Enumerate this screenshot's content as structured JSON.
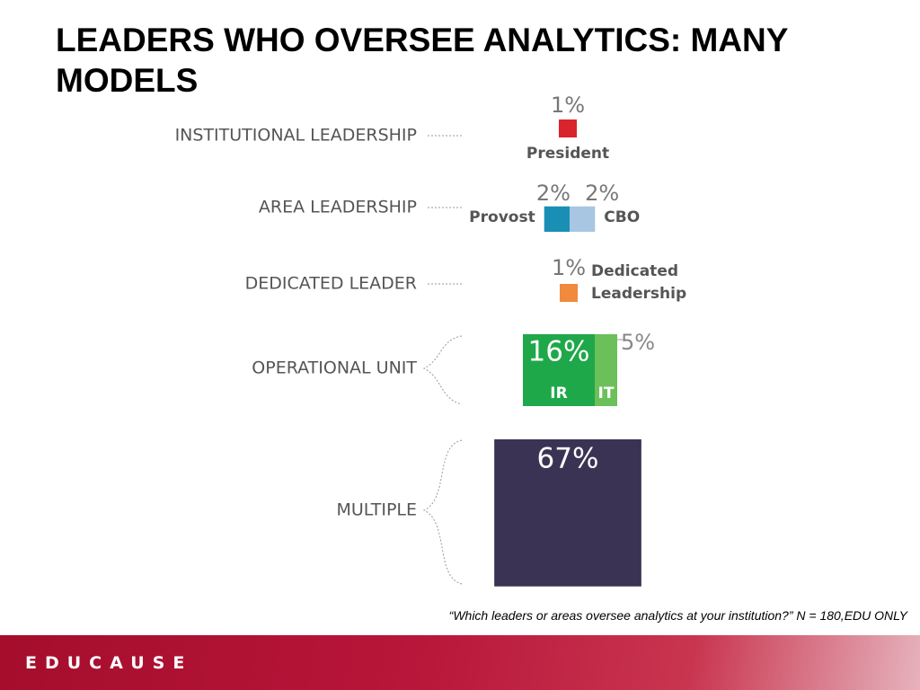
{
  "title": "LEADERS WHO OVERSEE ANALYTICS: MANY MODELS",
  "groups": [
    {
      "label": "INSTITUTIONAL LEADERSHIP",
      "items": [
        {
          "name": "President",
          "value": 1,
          "value_label": "1%",
          "color": "#d9232d"
        }
      ]
    },
    {
      "label": "AREA LEADERSHIP",
      "items": [
        {
          "name": "Provost",
          "value": 2,
          "value_label": "2%",
          "color": "#1a8fb5"
        },
        {
          "name": "CBO",
          "value": 2,
          "value_label": "2%",
          "color": "#a8c6e2"
        }
      ]
    },
    {
      "label": "DEDICATED LEADER",
      "items": [
        {
          "name": "Dedicated Leadership",
          "value": 1,
          "value_label": "1%",
          "color": "#f08a3c"
        }
      ]
    },
    {
      "label": "OPERATIONAL UNIT",
      "items": [
        {
          "name": "IR",
          "value": 16,
          "value_label": "16%",
          "color": "#1fa84a"
        },
        {
          "name": "IT",
          "value": 5,
          "value_label": "5%",
          "color": "#6cc05a"
        }
      ]
    },
    {
      "label": "MULTIPLE",
      "items": [
        {
          "value": 67,
          "value_label": "67%",
          "color": "#3b3353"
        }
      ]
    }
  ],
  "note": "“Which leaders or areas oversee analytics at your institution?” N = 180,EDU ONLY",
  "brand": "EDUCAUSE"
}
